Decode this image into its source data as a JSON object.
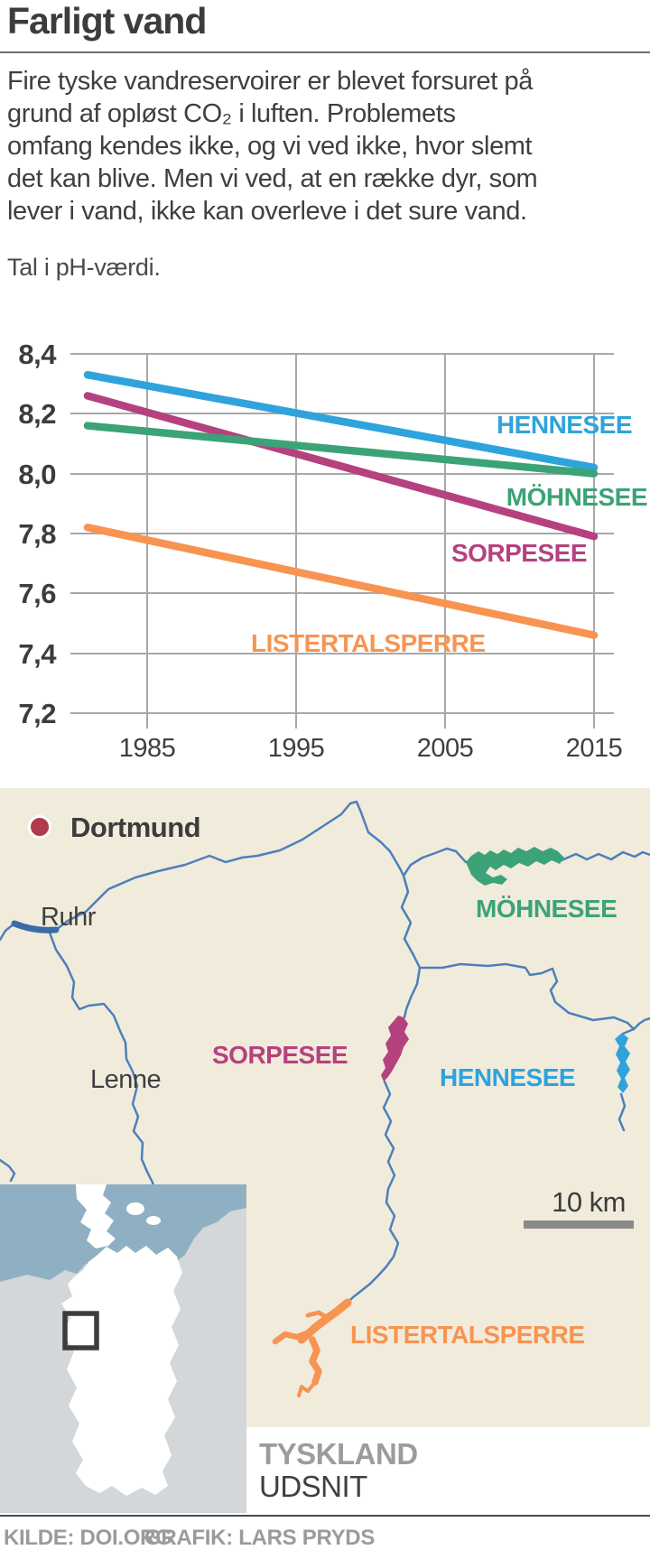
{
  "header": {
    "title": "Farligt vand"
  },
  "intro_lines": [
    "Fire tyske vandreservoirer er blevet forsuret på",
    "grund af opløst CO₂ i luften. Problemets",
    "omfang kendes ikke, og vi ved ikke, hvor slemt",
    "det kan blive. Men vi ved, at en række dyr, som",
    "lever i vand, ikke kan overleve i det sure vand."
  ],
  "chart_note": "Tal i pH-værdi.",
  "chart_data": {
    "type": "line",
    "title": "Farligt vand",
    "ylabel": "pH",
    "xlabel": "",
    "x": [
      1981,
      2015
    ],
    "series": [
      {
        "name": "HENNESEE",
        "color": "#2fa3db",
        "values": [
          8.33,
          8.02
        ]
      },
      {
        "name": "MÖHNESEE",
        "color": "#3ba377",
        "values": [
          8.16,
          8.0
        ]
      },
      {
        "name": "SORPESEE",
        "color": "#b5417f",
        "values": [
          8.26,
          7.79
        ]
      },
      {
        "name": "LISTERTALSPERRE",
        "color": "#f79452",
        "values": [
          7.82,
          7.46
        ]
      }
    ],
    "xtick_labels": [
      "1985",
      "1995",
      "2005",
      "2015"
    ],
    "ytick_labels": [
      "8,4",
      "8,2",
      "8,0",
      "7,8",
      "7,6",
      "7,4",
      "7,2"
    ],
    "ylim": [
      7.2,
      8.4
    ],
    "grid": true,
    "legend_position": "labels-inline-right"
  },
  "map": {
    "city_label": "Dortmund",
    "river_labels": {
      "ruhr": "Ruhr",
      "lenne": "Lenne"
    },
    "lake_labels": {
      "moehnesee": "MÖHNESEE",
      "sorpesee": "SORPESEE",
      "hennesee": "HENNESEE",
      "listertalsperre": "LISTERTALSPERRE"
    },
    "scale_label": "10 km",
    "inset": {
      "country_label": "TYSKLAND",
      "caption_label": "UDSNIT"
    }
  },
  "footer": {
    "source": "KILDE: DOI.ORG",
    "credit": "GRAFIK: LARS PRYDS"
  },
  "colors": {
    "grid": "#a8a8a8",
    "text_dark": "#3c3c3c",
    "text_mid": "#3f3f3f",
    "text_gray": "#9b9b9b",
    "map_bg": "#f1ebdc",
    "river": "#4d7fbc",
    "river_dark": "#3a6da6",
    "sea": "#8fb0c2",
    "land_neutral": "#d3d7d9",
    "germany": "#ffffff",
    "city_dot": "#b13a4d",
    "scale_bar": "#8a8a8a",
    "inset_marker": "#3c3c3c"
  }
}
